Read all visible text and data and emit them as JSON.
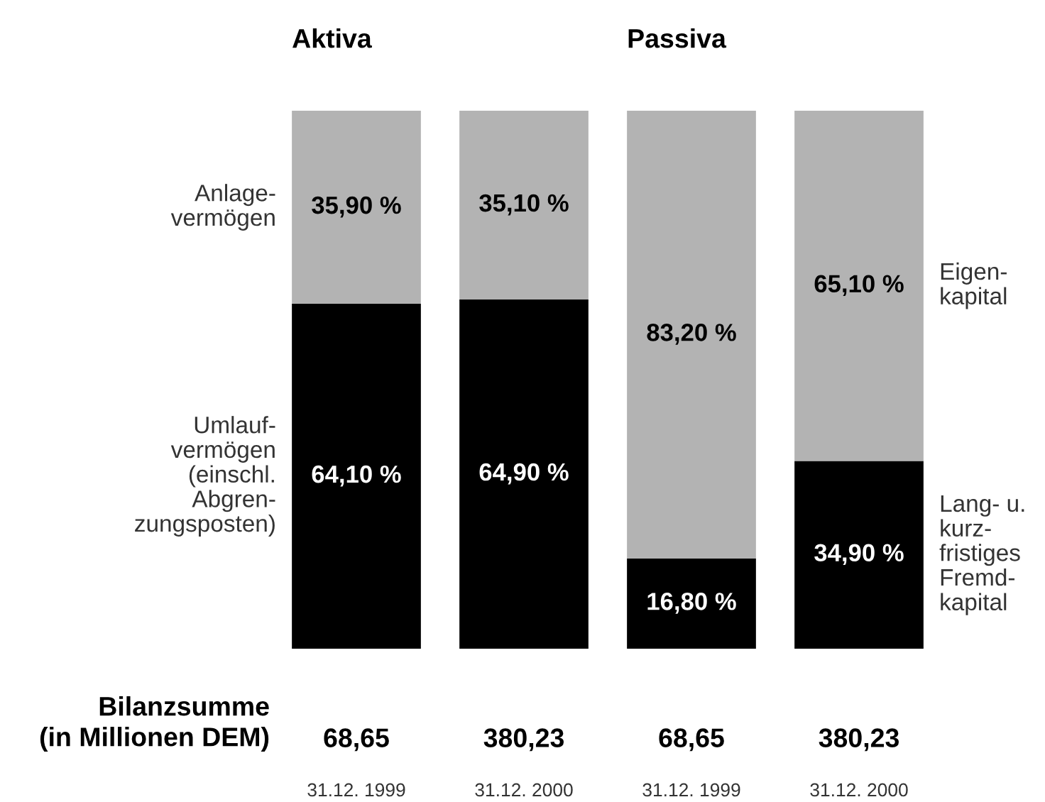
{
  "chart_data": {
    "type": "bar",
    "stacked": true,
    "categories": [
      "31.12. 1999",
      "31.12. 2000",
      "31.12. 1999",
      "31.12. 2000"
    ],
    "ylim": [
      0,
      100
    ],
    "series": [
      {
        "name": "Umlauf-\nvermögen\n(einschl.\nAbgren-\nzungsposten)",
        "color": "#000000",
        "values": [
          64.1,
          64.9,
          null,
          null
        ],
        "value_labels": [
          "64,10 %",
          "64,90 %",
          null,
          null
        ]
      },
      {
        "name": "Anlage-\nvermögen",
        "color": "#b3b3b3",
        "values": [
          35.9,
          35.1,
          null,
          null
        ],
        "value_labels": [
          "35,90 %",
          "35,10 %",
          null,
          null
        ]
      },
      {
        "name": "Lang- u.\nkurz-\nfristiges\nFremd-\nkapital",
        "color": "#000000",
        "values": [
          null,
          null,
          16.8,
          34.9
        ],
        "value_labels": [
          null,
          null,
          "16,80 %",
          "34,90 %"
        ]
      },
      {
        "name": "Eigen-\nkapital",
        "color": "#b3b3b3",
        "values": [
          null,
          null,
          83.2,
          65.1
        ],
        "value_labels": [
          null,
          null,
          "83,20 %",
          "65,10 %"
        ]
      }
    ],
    "annotations": [
      "Aktiva",
      "Passiva",
      "Bilanzsumme\n(in Millionen DEM)",
      "68,65",
      "380,23",
      "68,65",
      "380,23"
    ],
    "legend": false,
    "grid": false
  }
}
